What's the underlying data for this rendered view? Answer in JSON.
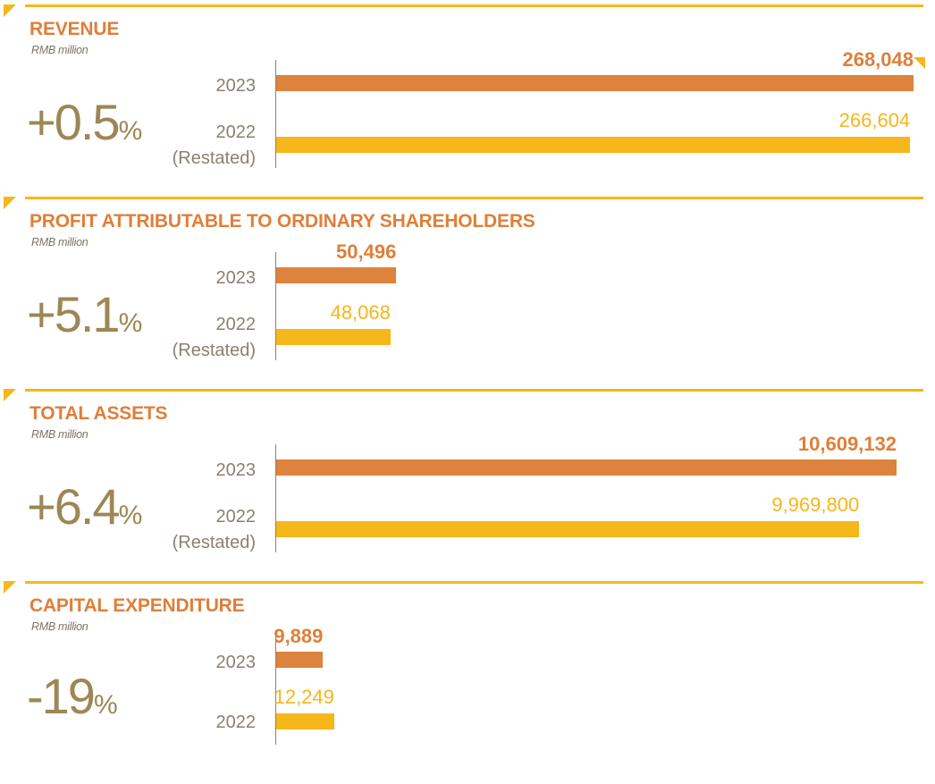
{
  "colors": {
    "accent_2023": "#de833b",
    "accent_2022": "#f5b71a",
    "change_text": "#9c8755"
  },
  "chart_data": [
    {
      "type": "bar",
      "orientation": "horizontal",
      "title": "REVENUE",
      "unit": "RMB million",
      "change": {
        "value": "+0.5",
        "symbol": "%"
      },
      "categories": [
        {
          "year": "2023",
          "note": ""
        },
        {
          "year": "2022",
          "note": "(Restated)"
        }
      ],
      "values": [
        268048,
        266604
      ],
      "value_labels": [
        "268,048",
        "266,604"
      ]
    },
    {
      "type": "bar",
      "orientation": "horizontal",
      "title": "PROFIT ATTRIBUTABLE TO ORDINARY SHAREHOLDERS",
      "unit": "RMB million",
      "change": {
        "value": "+5.1",
        "symbol": "%"
      },
      "categories": [
        {
          "year": "2023",
          "note": ""
        },
        {
          "year": "2022",
          "note": "(Restated)"
        }
      ],
      "values": [
        50496,
        48068
      ],
      "value_labels": [
        "50,496",
        "48,068"
      ]
    },
    {
      "type": "bar",
      "orientation": "horizontal",
      "title": "TOTAL ASSETS",
      "unit": "RMB million",
      "change": {
        "value": "+6.4",
        "symbol": "%"
      },
      "categories": [
        {
          "year": "2023",
          "note": ""
        },
        {
          "year": "2022",
          "note": "(Restated)"
        }
      ],
      "values": [
        10609132,
        9969800
      ],
      "value_labels": [
        "10,609,132",
        "9,969,800"
      ]
    },
    {
      "type": "bar",
      "orientation": "horizontal",
      "title": "CAPITAL EXPENDITURE",
      "unit": "RMB million",
      "change": {
        "value": "-19",
        "symbol": "%"
      },
      "categories": [
        {
          "year": "2023",
          "note": ""
        },
        {
          "year": "2022",
          "note": ""
        }
      ],
      "values": [
        9889,
        12249
      ],
      "value_labels": [
        "9,889",
        "12,249"
      ]
    }
  ]
}
